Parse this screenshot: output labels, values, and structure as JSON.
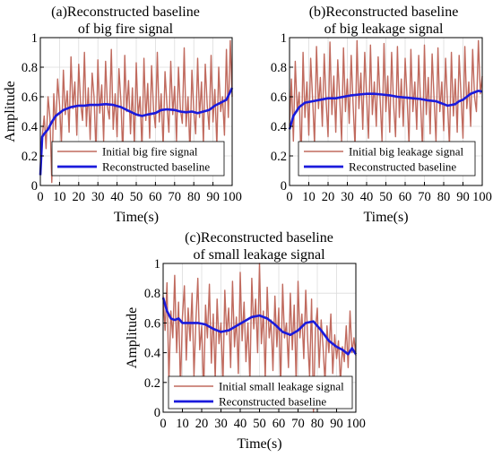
{
  "chart_data": [
    {
      "type": "line",
      "title": "(a)Reconstructed baseline",
      "subtitle": "of big fire signal",
      "xlabel": "Time(s)",
      "ylabel": "Amplitude",
      "xlim": [
        0,
        100
      ],
      "ylim": [
        0,
        1
      ],
      "xticks": [
        "0",
        "10",
        "20",
        "30",
        "40",
        "50",
        "60",
        "70",
        "80",
        "90",
        "100"
      ],
      "yticks": [
        "0",
        "0.2",
        "0.4",
        "0.6",
        "0.8",
        "1"
      ],
      "grid": true,
      "legend_position": "lower-right",
      "series": [
        {
          "name": "Initial big fire signal",
          "color": "#c06a5e",
          "x": [
            0,
            1,
            2,
            3,
            4,
            5,
            6,
            7,
            8,
            9,
            10,
            11,
            12,
            13,
            14,
            15,
            16,
            17,
            18,
            19,
            20,
            21,
            22,
            23,
            24,
            25,
            26,
            27,
            28,
            29,
            30,
            31,
            32,
            33,
            34,
            35,
            36,
            37,
            38,
            39,
            40,
            41,
            42,
            43,
            44,
            45,
            46,
            47,
            48,
            49,
            50,
            51,
            52,
            53,
            54,
            55,
            56,
            57,
            58,
            59,
            60,
            61,
            62,
            63,
            64,
            65,
            66,
            67,
            68,
            69,
            70,
            71,
            72,
            73,
            74,
            75,
            76,
            77,
            78,
            79,
            80,
            81,
            82,
            83,
            84,
            85,
            86,
            87,
            88,
            89,
            90,
            91,
            92,
            93,
            94,
            95,
            96,
            97,
            98,
            99,
            100
          ],
          "values": [
            0.08,
            0.33,
            0.47,
            0.25,
            0.6,
            0.46,
            0.02,
            0.62,
            0.38,
            0.72,
            0.55,
            0.28,
            0.78,
            0.48,
            0.64,
            0.36,
            0.87,
            0.52,
            0.7,
            0.34,
            0.82,
            0.56,
            0.44,
            0.9,
            0.4,
            0.66,
            0.31,
            0.76,
            0.6,
            0.22,
            0.85,
            0.49,
            0.68,
            0.3,
            0.84,
            0.53,
            0.45,
            0.92,
            0.38,
            0.62,
            0.33,
            0.79,
            0.57,
            0.2,
            0.88,
            0.5,
            0.71,
            0.35,
            0.66,
            0.27,
            0.83,
            0.47,
            0.6,
            0.24,
            0.86,
            0.44,
            0.69,
            0.32,
            0.81,
            0.51,
            0.39,
            0.9,
            0.43,
            0.62,
            0.26,
            0.77,
            0.55,
            0.36,
            0.84,
            0.48,
            0.67,
            0.3,
            0.8,
            0.52,
            0.42,
            0.93,
            0.4,
            0.6,
            0.22,
            0.78,
            0.5,
            0.35,
            0.86,
            0.46,
            0.7,
            0.28,
            0.82,
            0.54,
            0.38,
            0.88,
            0.43,
            0.65,
            0.27,
            0.8,
            0.5,
            0.6,
            0.34,
            0.92,
            0.46,
            0.98,
            0.6
          ]
        },
        {
          "name": "Reconstructed baseline",
          "color": "#1a1adc",
          "x": [
            0,
            1,
            2,
            4,
            6,
            8,
            10,
            12,
            14,
            16,
            18,
            20,
            23,
            26,
            30,
            34,
            38,
            42,
            46,
            50,
            53,
            56,
            60,
            63,
            66,
            70,
            73,
            76,
            79,
            82,
            85,
            88,
            91,
            94,
            97,
            100
          ],
          "values": [
            0.07,
            0.33,
            0.35,
            0.38,
            0.43,
            0.47,
            0.49,
            0.51,
            0.52,
            0.53,
            0.535,
            0.54,
            0.54,
            0.545,
            0.545,
            0.55,
            0.545,
            0.53,
            0.505,
            0.48,
            0.47,
            0.48,
            0.49,
            0.51,
            0.515,
            0.51,
            0.5,
            0.495,
            0.5,
            0.49,
            0.5,
            0.51,
            0.54,
            0.56,
            0.58,
            0.66
          ]
        }
      ]
    },
    {
      "type": "line",
      "title": "(b)Reconstructed baseline",
      "subtitle": "of big leakage signal",
      "xlabel": "Time(s)",
      "ylabel": "",
      "xlim": [
        0,
        100
      ],
      "ylim": [
        0,
        1
      ],
      "xticks": [
        "0",
        "10",
        "20",
        "30",
        "40",
        "50",
        "60",
        "70",
        "80",
        "90",
        "100"
      ],
      "yticks": [
        "0",
        "0.2",
        "0.4",
        "0.6",
        "0.8",
        "1"
      ],
      "grid": true,
      "legend_position": "lower-right",
      "series": [
        {
          "name": "Initial big leakage signal",
          "color": "#c06a5e",
          "x": [
            0,
            1,
            2,
            3,
            4,
            5,
            6,
            7,
            8,
            9,
            10,
            11,
            12,
            13,
            14,
            15,
            16,
            17,
            18,
            19,
            20,
            21,
            22,
            23,
            24,
            25,
            26,
            27,
            28,
            29,
            30,
            31,
            32,
            33,
            34,
            35,
            36,
            37,
            38,
            39,
            40,
            41,
            42,
            43,
            44,
            45,
            46,
            47,
            48,
            49,
            50,
            51,
            52,
            53,
            54,
            55,
            56,
            57,
            58,
            59,
            60,
            61,
            62,
            63,
            64,
            65,
            66,
            67,
            68,
            69,
            70,
            71,
            72,
            73,
            74,
            75,
            76,
            77,
            78,
            79,
            80,
            81,
            82,
            83,
            84,
            85,
            86,
            87,
            88,
            89,
            90,
            91,
            92,
            93,
            94,
            95,
            96,
            97,
            98,
            99,
            100
          ],
          "values": [
            0.4,
            0.72,
            0.3,
            0.84,
            0.5,
            0.63,
            0.14,
            0.9,
            0.46,
            0.7,
            0.34,
            0.86,
            0.58,
            0.28,
            0.94,
            0.52,
            0.73,
            0.4,
            0.89,
            0.56,
            0.33,
            0.97,
            0.48,
            0.74,
            0.36,
            0.85,
            0.6,
            0.3,
            0.93,
            0.5,
            0.72,
            0.42,
            0.88,
            0.55,
            0.26,
            0.98,
            0.52,
            0.76,
            0.38,
            0.9,
            0.6,
            0.32,
            0.95,
            0.48,
            0.7,
            0.4,
            0.87,
            0.58,
            0.3,
            0.96,
            0.5,
            0.74,
            0.36,
            0.9,
            0.55,
            0.33,
            0.94,
            0.46,
            0.72,
            0.4,
            0.86,
            0.6,
            0.28,
            0.92,
            0.5,
            0.7,
            0.38,
            0.88,
            0.56,
            0.24,
            0.95,
            0.48,
            0.73,
            0.35,
            0.89,
            0.58,
            0.3,
            0.93,
            0.5,
            0.7,
            0.37,
            0.86,
            0.55,
            0.27,
            0.9,
            0.47,
            0.72,
            0.36,
            0.88,
            0.6,
            0.32,
            0.94,
            0.52,
            0.7,
            0.4,
            0.92,
            0.6,
            0.5,
            0.98,
            0.62,
            0.74
          ]
        },
        {
          "name": "Reconstructed baseline",
          "color": "#1a1adc",
          "x": [
            0,
            2,
            5,
            8,
            12,
            16,
            20,
            24,
            28,
            32,
            36,
            40,
            44,
            48,
            52,
            56,
            60,
            64,
            68,
            72,
            76,
            80,
            82,
            84,
            86,
            88,
            90,
            92,
            94,
            96,
            98,
            100
          ],
          "values": [
            0.38,
            0.47,
            0.53,
            0.56,
            0.57,
            0.58,
            0.59,
            0.59,
            0.6,
            0.61,
            0.615,
            0.62,
            0.62,
            0.615,
            0.61,
            0.6,
            0.595,
            0.59,
            0.585,
            0.575,
            0.57,
            0.55,
            0.54,
            0.545,
            0.55,
            0.57,
            0.58,
            0.6,
            0.62,
            0.63,
            0.64,
            0.635
          ]
        }
      ]
    },
    {
      "type": "line",
      "title": "(c)Reconstructed baseline",
      "subtitle": "of small leakage signal",
      "xlabel": "Time(s)",
      "ylabel": "Amplitude",
      "xlim": [
        0,
        100
      ],
      "ylim": [
        0,
        1
      ],
      "xticks": [
        "0",
        "10",
        "20",
        "30",
        "40",
        "50",
        "60",
        "70",
        "80",
        "90",
        "100"
      ],
      "yticks": [
        "0",
        "0.2",
        "0.4",
        "0.6",
        "0.8",
        "1"
      ],
      "grid": true,
      "legend_position": "lower-right",
      "series": [
        {
          "name": "Initial small leakage signal",
          "color": "#c06a5e",
          "x": [
            0,
            1,
            2,
            3,
            4,
            5,
            6,
            7,
            8,
            9,
            10,
            11,
            12,
            13,
            14,
            15,
            16,
            17,
            18,
            19,
            20,
            21,
            22,
            23,
            24,
            25,
            26,
            27,
            28,
            29,
            30,
            31,
            32,
            33,
            34,
            35,
            36,
            37,
            38,
            39,
            40,
            41,
            42,
            43,
            44,
            45,
            46,
            47,
            48,
            49,
            50,
            51,
            52,
            53,
            54,
            55,
            56,
            57,
            58,
            59,
            60,
            61,
            62,
            63,
            64,
            65,
            66,
            67,
            68,
            69,
            70,
            71,
            72,
            73,
            74,
            75,
            76,
            77,
            78,
            79,
            80,
            81,
            82,
            83,
            84,
            85,
            86,
            87,
            88,
            89,
            90,
            91,
            92,
            93,
            94,
            95,
            96,
            97,
            98,
            99,
            100
          ],
          "values": [
            0.78,
            0.55,
            0.87,
            0.2,
            0.68,
            0.5,
            0.92,
            0.4,
            0.74,
            0.16,
            0.64,
            0.85,
            0.35,
            0.7,
            0.48,
            0.8,
            0.24,
            0.62,
            0.9,
            0.42,
            0.58,
            0.12,
            0.72,
            0.5,
            0.86,
            0.33,
            0.66,
            0.22,
            0.76,
            0.46,
            0.6,
            0.18,
            0.82,
            0.52,
            0.7,
            0.3,
            0.88,
            0.44,
            0.64,
            0.26,
            0.94,
            0.48,
            0.74,
            0.34,
            0.6,
            0.2,
            0.9,
            0.56,
            0.76,
            0.4,
            1.0,
            0.46,
            0.68,
            0.22,
            0.84,
            0.5,
            0.62,
            0.28,
            0.78,
            0.44,
            0.7,
            0.16,
            0.86,
            0.5,
            0.6,
            0.3,
            0.8,
            0.42,
            0.72,
            0.2,
            0.88,
            0.5,
            0.66,
            0.36,
            0.82,
            0.48,
            0.24,
            0.76,
            0.0,
            0.56,
            0.7,
            0.3,
            0.62,
            0.44,
            0.2,
            0.58,
            0.4,
            0.66,
            0.26,
            0.52,
            0.36,
            0.48,
            0.2,
            0.44,
            0.34,
            0.58,
            0.3,
            0.68,
            0.4,
            0.5,
            0.38
          ]
        },
        {
          "name": "Reconstructed baseline",
          "color": "#1a1adc",
          "x": [
            0,
            2,
            4,
            6,
            8,
            10,
            14,
            18,
            22,
            26,
            30,
            34,
            38,
            42,
            46,
            50,
            54,
            58,
            62,
            66,
            70,
            74,
            78,
            82,
            86,
            90,
            93,
            96,
            98,
            100
          ],
          "values": [
            0.77,
            0.68,
            0.63,
            0.62,
            0.63,
            0.6,
            0.6,
            0.6,
            0.59,
            0.56,
            0.54,
            0.55,
            0.58,
            0.61,
            0.64,
            0.65,
            0.63,
            0.59,
            0.54,
            0.52,
            0.55,
            0.6,
            0.61,
            0.55,
            0.48,
            0.44,
            0.42,
            0.39,
            0.43,
            0.39
          ]
        }
      ]
    }
  ]
}
